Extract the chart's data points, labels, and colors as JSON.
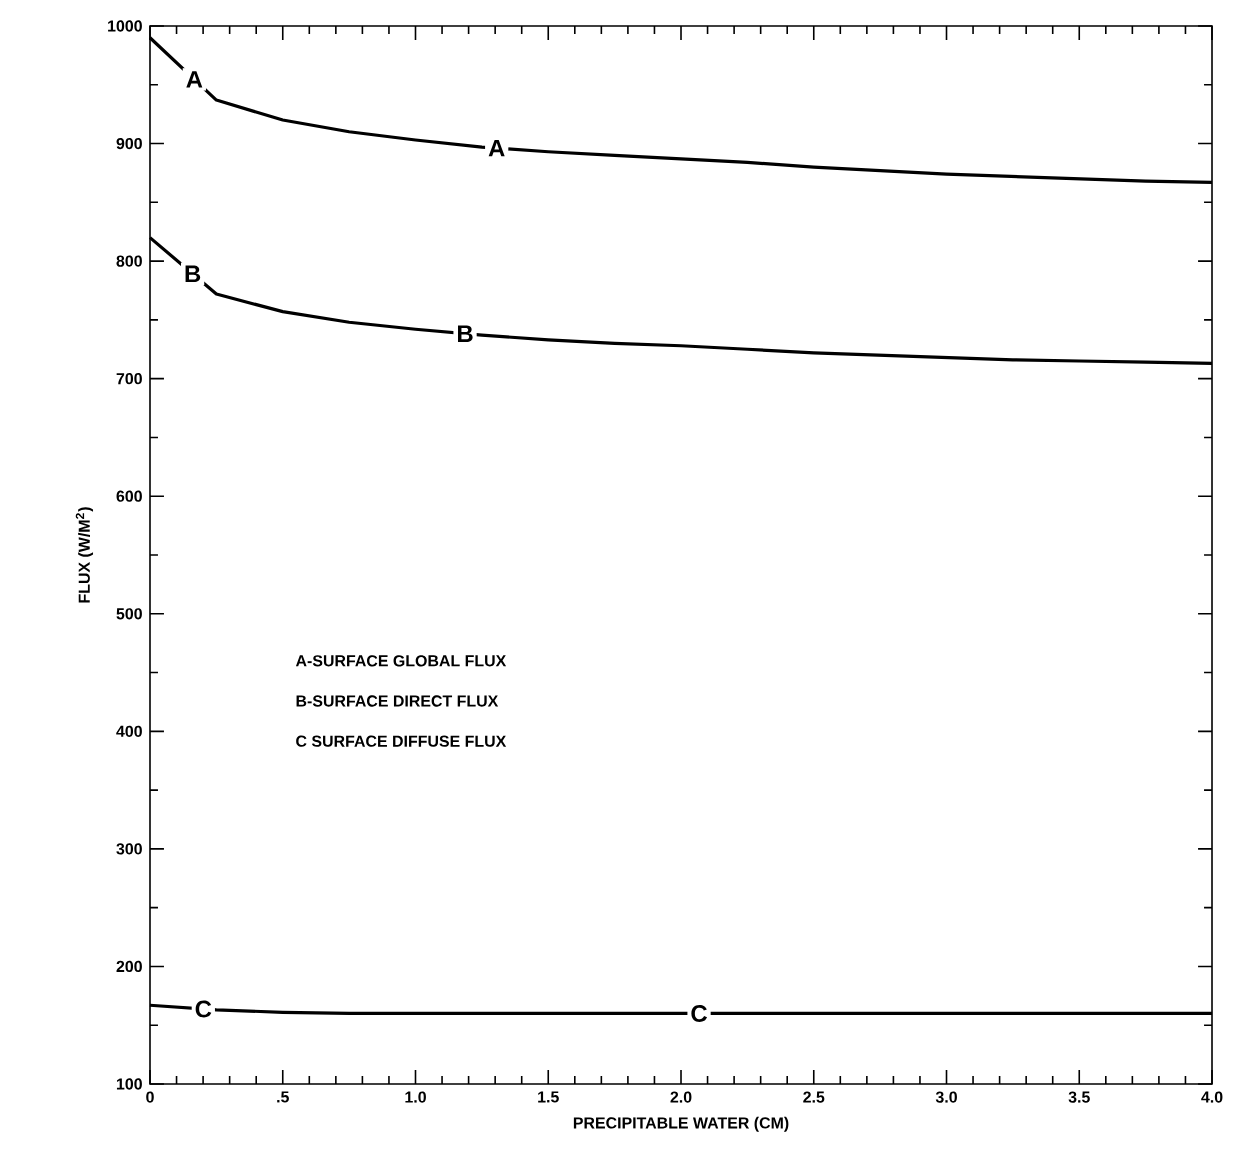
{
  "chart_data": {
    "type": "line",
    "xlabel": "PRECIPITABLE WATER (CM)",
    "ylabel": "FLUX (W/M$^{2}$)",
    "xlim": [
      0,
      4.0
    ],
    "ylim": [
      100,
      1000
    ],
    "xticks": [
      0,
      {
        "value": 0.5,
        "label": ".5"
      },
      {
        "value": 1.0,
        "label": "1.0"
      },
      {
        "value": 1.5,
        "label": "1.5"
      },
      {
        "value": 2.0,
        "label": "2.0"
      },
      {
        "value": 2.5,
        "label": "2.5"
      },
      {
        "value": 3.0,
        "label": "3.0"
      },
      {
        "value": 3.5,
        "label": "3.5"
      },
      {
        "value": 4.0,
        "label": "4.0"
      }
    ],
    "yticks": [
      100,
      200,
      300,
      400,
      500,
      600,
      700,
      800,
      900,
      1000
    ],
    "grid": false,
    "marker": "none",
    "line_style": "solid",
    "legend": "left",
    "x": [
      0,
      0.25,
      0.5,
      0.75,
      1.0,
      1.25,
      1.5,
      1.75,
      2.0,
      2.25,
      2.5,
      2.75,
      3.0,
      3.25,
      3.5,
      3.75,
      4.0
    ],
    "series": [
      {
        "name": "A",
        "color": "#000000",
        "values": [
          990,
          937,
          920,
          910,
          903,
          897,
          893,
          890,
          887,
          884,
          880,
          877,
          874,
          872,
          870,
          868,
          867
        ]
      },
      {
        "name": "B",
        "color": "#000000",
        "values": [
          820,
          772,
          757,
          748,
          742,
          737,
          733,
          730,
          728,
          725,
          722,
          720,
          718,
          716,
          715,
          714,
          713
        ]
      },
      {
        "name": "C",
        "color": "#000000",
        "values": [
          167,
          163,
          161,
          160,
          160,
          160,
          160,
          160,
          160,
          160,
          160,
          160,
          160,
          160,
          160,
          160,
          160
        ]
      }
    ],
    "annotations": [
      "A-SURFACE GLOBAL FLUX",
      "B-SURFACE DIRECT FLUX",
      "C SURFACE DIFFUSE FLUX"
    ]
  }
}
